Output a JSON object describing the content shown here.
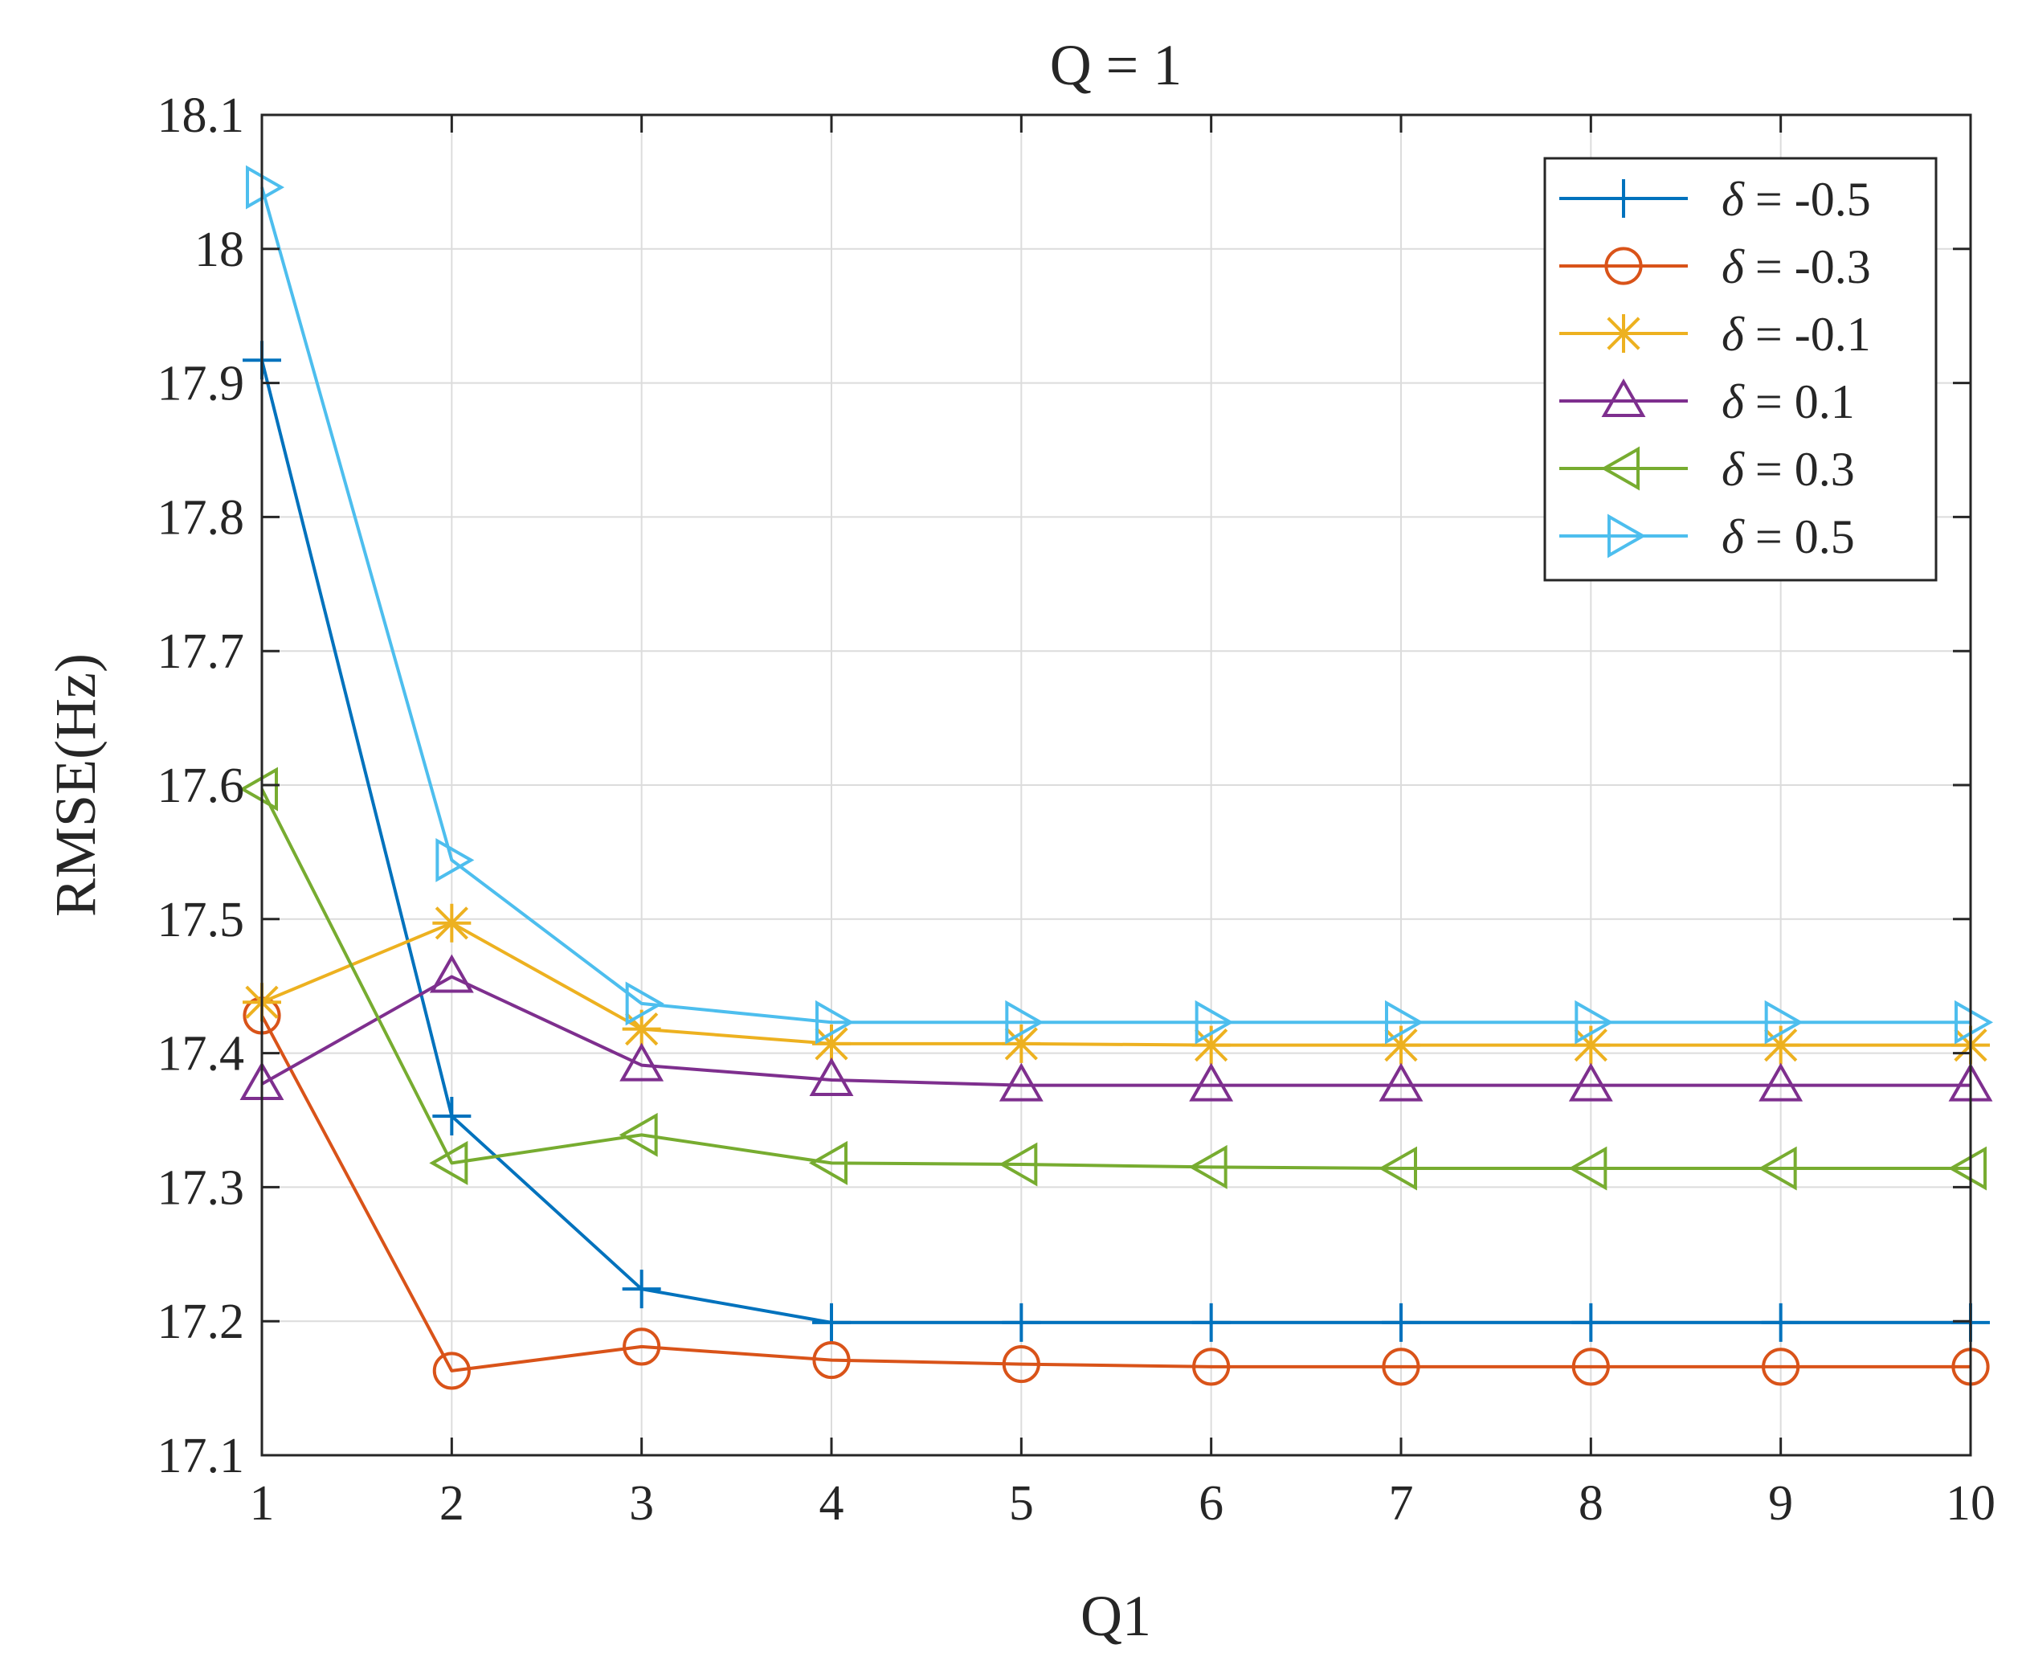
{
  "chart_data": {
    "type": "line",
    "title": "Q = 1",
    "xlabel": "Q1",
    "ylabel": "RMSE(Hz)",
    "x": [
      1,
      2,
      3,
      4,
      5,
      6,
      7,
      8,
      9,
      10
    ],
    "xlim": [
      1,
      10
    ],
    "ylim": [
      17.1,
      18.1
    ],
    "xticks": [
      "1",
      "2",
      "3",
      "4",
      "5",
      "6",
      "7",
      "8",
      "9",
      "10"
    ],
    "yticks": [
      "17.1",
      "17.2",
      "17.3",
      "17.4",
      "17.5",
      "17.6",
      "17.7",
      "17.8",
      "17.9",
      "18",
      "18.1"
    ],
    "grid": true,
    "legend_position": "top-right",
    "series": [
      {
        "name": "δ = -0.5",
        "delta_symbol": "δ",
        "delta_value": "= -0.5",
        "color": "#0072BD",
        "marker": "plus",
        "values": [
          17.917,
          17.353,
          17.224,
          17.199,
          17.199,
          17.199,
          17.199,
          17.199,
          17.199,
          17.199
        ]
      },
      {
        "name": "δ = -0.3",
        "delta_symbol": "δ",
        "delta_value": "= -0.3",
        "color": "#D95319",
        "marker": "circle",
        "values": [
          17.428,
          17.163,
          17.181,
          17.171,
          17.168,
          17.166,
          17.166,
          17.166,
          17.166,
          17.166
        ]
      },
      {
        "name": "δ = -0.1",
        "delta_symbol": "δ",
        "delta_value": "= -0.1",
        "color": "#EDB120",
        "marker": "asterisk",
        "values": [
          17.438,
          17.497,
          17.418,
          17.407,
          17.407,
          17.406,
          17.406,
          17.406,
          17.406,
          17.406
        ]
      },
      {
        "name": "δ = 0.1",
        "delta_symbol": "δ",
        "delta_value": "= 0.1",
        "color": "#7E2F8E",
        "marker": "triangle-up",
        "values": [
          17.377,
          17.457,
          17.391,
          17.38,
          17.376,
          17.376,
          17.376,
          17.376,
          17.376,
          17.376
        ]
      },
      {
        "name": "δ = 0.3",
        "delta_symbol": "δ",
        "delta_value": "= 0.3",
        "color": "#77AC30",
        "marker": "triangle-left",
        "values": [
          17.597,
          17.318,
          17.339,
          17.318,
          17.317,
          17.315,
          17.314,
          17.314,
          17.314,
          17.314
        ]
      },
      {
        "name": "δ = 0.5",
        "delta_symbol": "δ",
        "delta_value": "= 0.5",
        "color": "#4DBEEE",
        "marker": "triangle-right",
        "values": [
          18.046,
          17.544,
          17.437,
          17.423,
          17.423,
          17.423,
          17.423,
          17.423,
          17.423,
          17.423
        ]
      }
    ]
  }
}
